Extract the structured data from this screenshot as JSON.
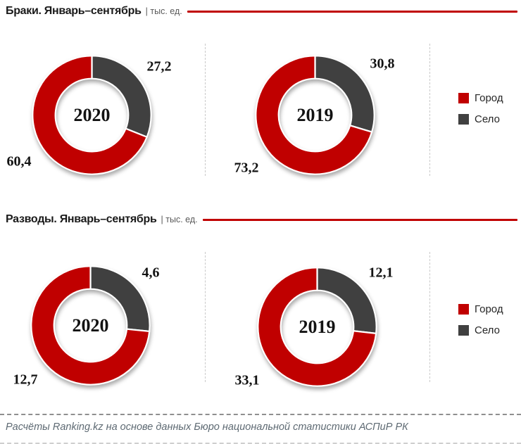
{
  "colors": {
    "gorod": "#C00000",
    "selo": "#404040",
    "accent_line": "#C00000"
  },
  "legend": {
    "items": [
      {
        "label": "Город",
        "color": "#C00000"
      },
      {
        "label": "Село",
        "color": "#404040"
      }
    ]
  },
  "footer": {
    "source_note": "Расчёты Ranking.kz на основе данных Бюро национальной статистики АСПиР РК"
  },
  "chart_data": [
    {
      "type": "pie",
      "title": "Браки. Январь–сентябрь",
      "unit_label": "| тыс. ед.",
      "legend": [
        "Город",
        "Село"
      ],
      "legend_position": "right",
      "donut_hole_ratio": 0.61,
      "start_angle_deg": 0,
      "clockwise": true,
      "donuts": [
        {
          "center_label": "2020",
          "slices": [
            {
              "name": "Город",
              "value": 60.4,
              "label": "60,4",
              "color": "#C00000"
            },
            {
              "name": "Село",
              "value": 27.2,
              "label": "27,2",
              "color": "#404040"
            }
          ]
        },
        {
          "center_label": "2019",
          "slices": [
            {
              "name": "Город",
              "value": 73.2,
              "label": "73,2",
              "color": "#C00000"
            },
            {
              "name": "Село",
              "value": 30.8,
              "label": "30,8",
              "color": "#404040"
            }
          ]
        }
      ]
    },
    {
      "type": "pie",
      "title": "Разводы. Январь–сентябрь",
      "unit_label": "| тыс. ед.",
      "legend": [
        "Город",
        "Село"
      ],
      "legend_position": "right",
      "donut_hole_ratio": 0.61,
      "start_angle_deg": 0,
      "clockwise": true,
      "donuts": [
        {
          "center_label": "2020",
          "slices": [
            {
              "name": "Город",
              "value": 12.7,
              "label": "12,7",
              "color": "#C00000"
            },
            {
              "name": "Село",
              "value": 4.6,
              "label": "4,6",
              "color": "#404040"
            }
          ]
        },
        {
          "center_label": "2019",
          "slices": [
            {
              "name": "Город",
              "value": 33.1,
              "label": "33,1",
              "color": "#C00000"
            },
            {
              "name": "Село",
              "value": 12.1,
              "label": "12,1",
              "color": "#404040"
            }
          ]
        }
      ]
    }
  ]
}
